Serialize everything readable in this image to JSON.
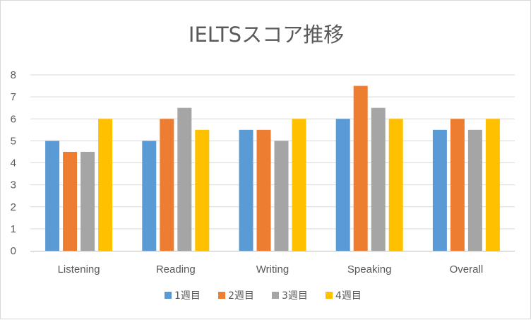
{
  "chart_data": {
    "type": "bar",
    "title": "IELTSスコア推移",
    "categories": [
      "Listening",
      "Reading",
      "Writing",
      "Speaking",
      "Overall"
    ],
    "series": [
      {
        "name": "1週目",
        "values": [
          5,
          5,
          5.5,
          6,
          5.5
        ],
        "color": "#5b9bd5"
      },
      {
        "name": "2週目",
        "values": [
          4.5,
          6,
          5.5,
          7.5,
          6
        ],
        "color": "#ed7d31"
      },
      {
        "name": "3週目",
        "values": [
          4.5,
          6.5,
          5,
          6.5,
          5.5
        ],
        "color": "#a5a5a5"
      },
      {
        "name": "4週目",
        "values": [
          6,
          5.5,
          6,
          6,
          6
        ],
        "color": "#ffc000"
      }
    ],
    "y_ticks": [
      "0",
      "1",
      "2",
      "3",
      "4",
      "5",
      "6",
      "7",
      "8"
    ],
    "ylim": [
      0,
      8
    ],
    "grid": true,
    "legend_position": "bottom",
    "gridline_color": "#d9d9d9",
    "axis_color": "#bfbfbf"
  }
}
